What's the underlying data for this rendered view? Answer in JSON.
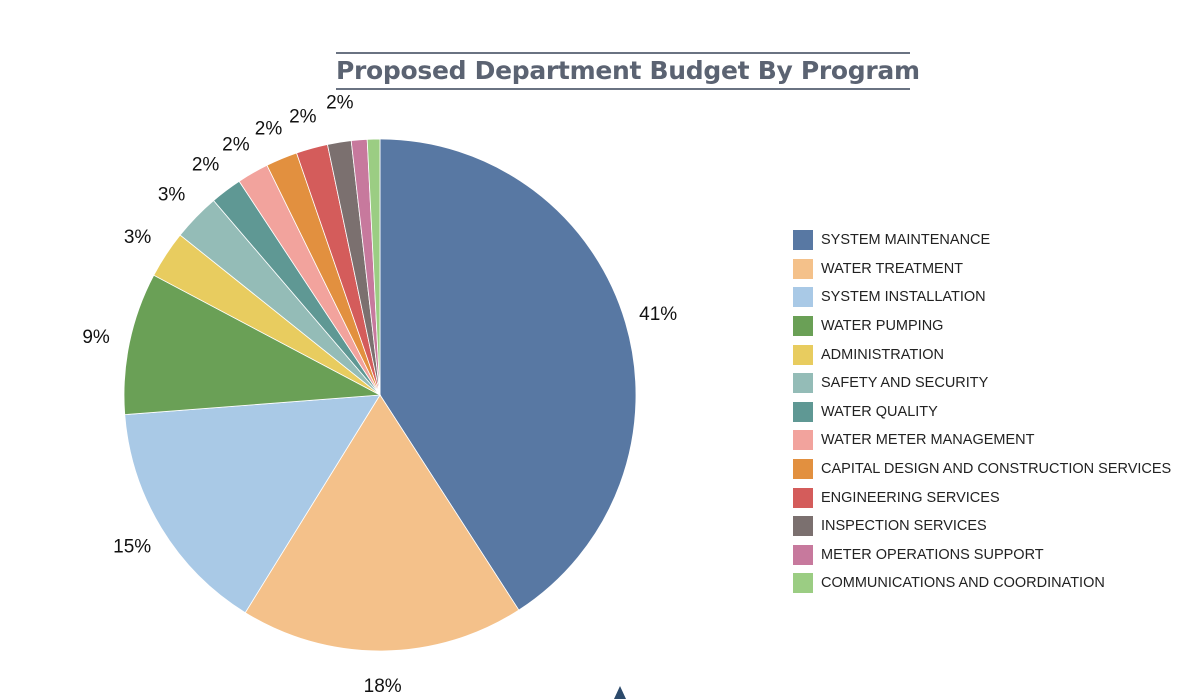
{
  "title": "Proposed Department Budget By Program",
  "chart_data": {
    "type": "pie",
    "title": "Proposed Department Budget By Program",
    "legend_position": "right",
    "slices": [
      {
        "label": "SYSTEM MAINTENANCE",
        "value": 41,
        "display": "41%",
        "color": "#5878a3"
      },
      {
        "label": "WATER TREATMENT",
        "value": 18,
        "display": "18%",
        "color": "#f4c18a"
      },
      {
        "label": "SYSTEM INSTALLATION",
        "value": 15,
        "display": "15%",
        "color": "#a9c9e6"
      },
      {
        "label": "WATER PUMPING",
        "value": 9,
        "display": "9%",
        "color": "#6aa056"
      },
      {
        "label": "ADMINISTRATION",
        "value": 3,
        "display": "3%",
        "color": "#e8cc5f"
      },
      {
        "label": "SAFETY AND SECURITY",
        "value": 3,
        "display": "3%",
        "color": "#94bcb7"
      },
      {
        "label": "WATER QUALITY",
        "value": 2,
        "display": "2%",
        "color": "#5f9894"
      },
      {
        "label": "WATER METER MANAGEMENT",
        "value": 2,
        "display": "2%",
        "color": "#f2a39d"
      },
      {
        "label": "CAPITAL DESIGN AND CONSTRUCTION SERVICES",
        "value": 2,
        "display": "2%",
        "color": "#e2903f"
      },
      {
        "label": "ENGINEERING SERVICES",
        "value": 2,
        "display": "2%",
        "color": "#d45c5b"
      },
      {
        "label": "INSPECTION SERVICES",
        "value": 1.5,
        "display": "",
        "color": "#7b706f"
      },
      {
        "label": "METER OPERATIONS SUPPORT",
        "value": 1,
        "display": "",
        "color": "#c7799d"
      },
      {
        "label": "COMMUNICATIONS AND COORDINATION",
        "value": 0.8,
        "display": "",
        "color": "#9bcd83"
      }
    ],
    "extra_labels": [
      "2%"
    ]
  }
}
